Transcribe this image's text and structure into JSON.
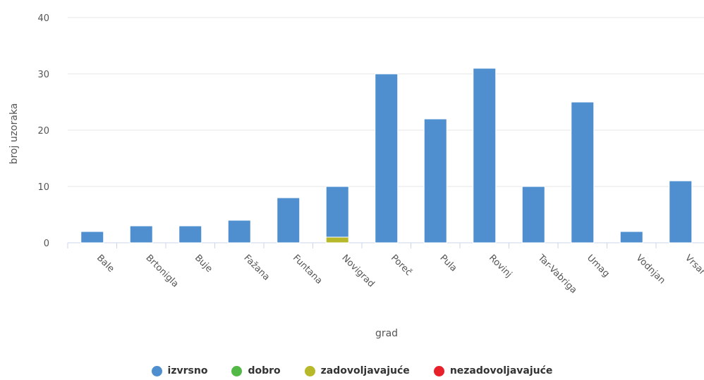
{
  "chart_data": {
    "type": "bar",
    "stacked": true,
    "xlabel": "grad",
    "ylabel": "broj uzoraka",
    "ylim": [
      0,
      40
    ],
    "yticks": [
      0,
      10,
      20,
      30,
      40
    ],
    "grid": true,
    "legend_position": "bottom",
    "categories": [
      "Bale",
      "Brtonigla",
      "Buje",
      "Fažana",
      "Funtana",
      "Novigrad",
      "Poreč",
      "Pula",
      "Rovinj",
      "Tar-Vabriga",
      "Umag",
      "Vodnjan",
      "Vrsar"
    ],
    "series": [
      {
        "name": "izvrsno",
        "color": "#4f8fd0",
        "values": [
          2,
          3,
          3,
          4,
          8,
          9,
          30,
          22,
          31,
          10,
          25,
          2,
          11
        ]
      },
      {
        "name": "dobro",
        "color": "#53b946",
        "values": [
          0,
          0,
          0,
          0,
          0,
          0,
          0,
          0,
          0,
          0,
          0,
          0,
          0
        ]
      },
      {
        "name": "zadovoljavajuće",
        "color": "#b7b92b",
        "values": [
          0,
          0,
          0,
          0,
          0,
          1,
          0,
          0,
          0,
          0,
          0,
          0,
          0
        ]
      },
      {
        "name": "nezadovoljavajuće",
        "color": "#e8202a",
        "values": [
          0,
          0,
          0,
          0,
          0,
          0,
          0,
          0,
          0,
          0,
          0,
          0,
          0
        ]
      }
    ]
  }
}
